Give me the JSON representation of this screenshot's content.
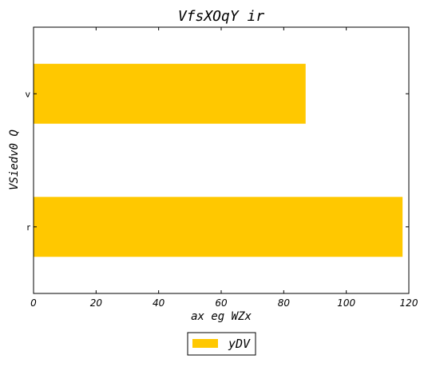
{
  "chart_data": {
    "type": "bar",
    "orientation": "horizontal",
    "title": "VfsXOqY ir",
    "xlabel": "ax eg  WZx",
    "ylabel": "VSiedv0 Q",
    "categories": [
      "r",
      "v"
    ],
    "series": [
      {
        "name": "yDV",
        "values": [
          118,
          87
        ],
        "color": "#ffc800"
      }
    ],
    "xlim": [
      0,
      120
    ],
    "xticks": [
      0,
      20,
      40,
      60,
      80,
      100,
      120
    ],
    "grid": false,
    "legend_position": "bottom-center"
  }
}
